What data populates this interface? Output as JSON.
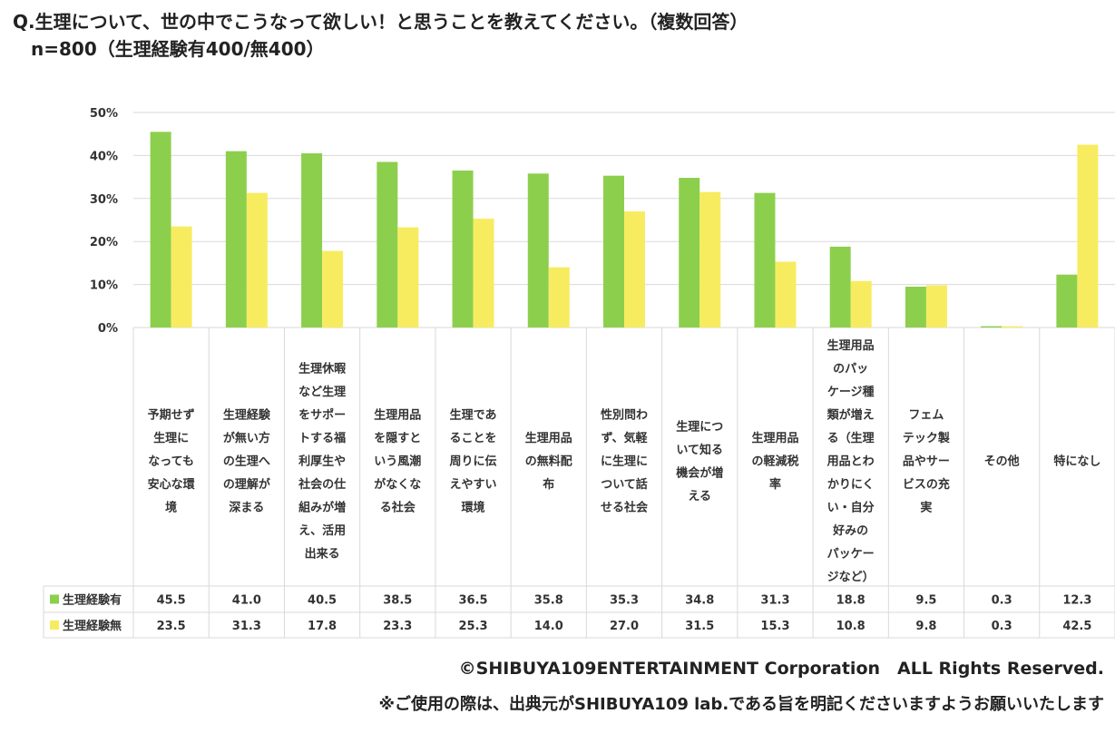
{
  "header": {
    "title_line1": "Q.生理について、世の中でこうなって欲しい！と思うことを教えてください。（複数回答）",
    "title_line2": "n=800（生理経験有400/無400）"
  },
  "footer": {
    "copyright": "©SHIBUYA109ENTERTAINMENT Corporation　ALL Rights Reserved.",
    "note": "※ご使用の際は、出典元がSHIBUYA109 lab.である旨を明記くださいますようお願いいたします"
  },
  "colors": {
    "series_a": "#8ccf4d",
    "series_b": "#f7ec5f",
    "grid": "#d9d9d9",
    "text": "#333333"
  },
  "chart_data": {
    "type": "bar",
    "title": "Q.生理について、世の中でこうなって欲しい！と思うことを教えてください。（複数回答）",
    "ylabel": "",
    "xlabel": "",
    "ylim": [
      0,
      50
    ],
    "yticks": [
      "0%",
      "10%",
      "20%",
      "30%",
      "40%",
      "50%"
    ],
    "ytick_values": [
      0,
      10,
      20,
      30,
      40,
      50
    ],
    "categories": [
      [
        "予期せず",
        "生理に",
        "なっても",
        "安心な環",
        "境"
      ],
      [
        "生理経験",
        "が無い方",
        "の生理へ",
        "の理解が",
        "深まる"
      ],
      [
        "生理休暇",
        "など生理",
        "をサポー",
        "トする福",
        "利厚生や",
        "社会の仕",
        "組みが増",
        "え、活用",
        "出来る"
      ],
      [
        "生理用品",
        "を隠すと",
        "いう風潮",
        "がなくな",
        "る社会"
      ],
      [
        "生理であ",
        "ることを",
        "周りに伝",
        "えやすい",
        "環境"
      ],
      [
        "生理用品",
        "の無料配",
        "布"
      ],
      [
        "性別問わ",
        "ず、気軽",
        "に生理に",
        "ついて話",
        "せる社会"
      ],
      [
        "生理につ",
        "いて知る",
        "機会が増",
        "える"
      ],
      [
        "生理用品",
        "の軽減税",
        "率"
      ],
      [
        "生理用品",
        "のパッ",
        "ケージ種",
        "類が増え",
        "る（生理",
        "用品とわ",
        "かりにく",
        "い・自分",
        "好みの",
        "パッケー",
        "ジなど）"
      ],
      [
        "フェム",
        "テック製",
        "品やサー",
        "ビスの充",
        "実"
      ],
      [
        "その他"
      ],
      [
        "特になし"
      ]
    ],
    "series": [
      {
        "name": "生理経験有",
        "values": [
          45.5,
          41.0,
          40.5,
          38.5,
          36.5,
          35.8,
          35.3,
          34.8,
          31.3,
          18.8,
          9.5,
          0.3,
          12.3
        ],
        "labels": [
          "45.5",
          "41.0",
          "40.5",
          "38.5",
          "36.5",
          "35.8",
          "35.3",
          "34.8",
          "31.3",
          "18.8",
          "9.5",
          "0.3",
          "12.3"
        ]
      },
      {
        "name": "生理経験無",
        "values": [
          23.5,
          31.3,
          17.8,
          23.3,
          25.3,
          14.0,
          27.0,
          31.5,
          15.3,
          10.8,
          9.8,
          0.3,
          42.5
        ],
        "labels": [
          "23.5",
          "31.3",
          "17.8",
          "23.3",
          "25.3",
          "14.0",
          "27.0",
          "31.5",
          "15.3",
          "10.8",
          "9.8",
          "0.3",
          "42.5"
        ]
      }
    ],
    "legend": "data-table-left",
    "grid": true
  }
}
